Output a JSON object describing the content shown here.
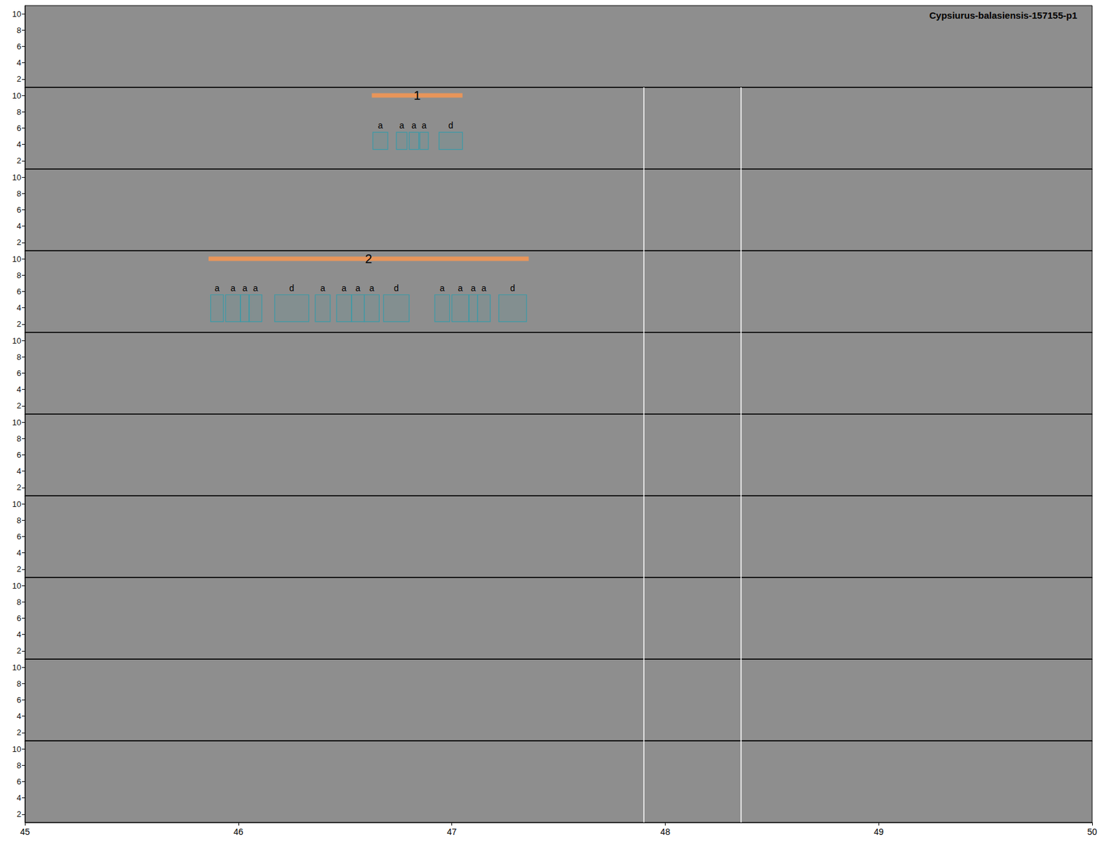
{
  "chart_data": {
    "type": "spectrogram",
    "title": "Cypsiurus-balasiensis-157155-p1",
    "xlim": [
      45,
      50
    ],
    "xticks": [
      45,
      46,
      47,
      48,
      49,
      50
    ],
    "ylim": [
      1,
      11
    ],
    "yticks": [
      2,
      4,
      6,
      8,
      10
    ],
    "panels": [
      {
        "vlines": []
      },
      {
        "vlines": [
          47.9,
          48.355
        ],
        "segments": [
          {
            "label": "1",
            "x": [
              46.625,
              47.05
            ],
            "y": 10
          }
        ],
        "boxes": [
          {
            "label": "a",
            "x": [
              46.63,
              46.7
            ],
            "y": [
              3.4,
              5.5
            ]
          },
          {
            "label": "a",
            "x": [
              46.74,
              46.79
            ],
            "y": [
              3.4,
              5.5
            ]
          },
          {
            "label": "a",
            "x": [
              46.8,
              46.845
            ],
            "y": [
              3.4,
              5.5
            ]
          },
          {
            "label": "a",
            "x": [
              46.85,
              46.89
            ],
            "y": [
              3.4,
              5.5
            ]
          },
          {
            "label": "d",
            "x": [
              46.94,
              47.05
            ],
            "y": [
              3.4,
              5.5
            ]
          }
        ]
      },
      {
        "vlines": [
          47.9,
          48.355
        ]
      },
      {
        "vlines": [
          47.9,
          48.355
        ],
        "segments": [
          {
            "label": "2",
            "x": [
              45.86,
              47.36
            ],
            "y": 10
          }
        ],
        "boxes": [
          {
            "label": "a",
            "x": [
              45.87,
              45.93
            ],
            "y": [
              2.3,
              5.6
            ]
          },
          {
            "label": "a",
            "x": [
              45.94,
              46.01
            ],
            "y": [
              2.3,
              5.6
            ]
          },
          {
            "label": "a",
            "x": [
              46.01,
              46.05
            ],
            "y": [
              2.3,
              5.6
            ]
          },
          {
            "label": "a",
            "x": [
              46.05,
              46.11
            ],
            "y": [
              2.3,
              5.6
            ]
          },
          {
            "label": "d",
            "x": [
              46.17,
              46.33
            ],
            "y": [
              2.3,
              5.6
            ]
          },
          {
            "label": "a",
            "x": [
              46.36,
              46.43
            ],
            "y": [
              2.3,
              5.6
            ]
          },
          {
            "label": "a",
            "x": [
              46.46,
              46.53
            ],
            "y": [
              2.3,
              5.6
            ]
          },
          {
            "label": "a",
            "x": [
              46.53,
              46.59
            ],
            "y": [
              2.3,
              5.6
            ]
          },
          {
            "label": "a",
            "x": [
              46.59,
              46.66
            ],
            "y": [
              2.3,
              5.6
            ]
          },
          {
            "label": "d",
            "x": [
              46.68,
              46.8
            ],
            "y": [
              2.3,
              5.6
            ]
          },
          {
            "label": "a",
            "x": [
              46.92,
              46.99
            ],
            "y": [
              2.3,
              5.6
            ]
          },
          {
            "label": "a",
            "x": [
              47.0,
              47.08
            ],
            "y": [
              2.3,
              5.6
            ]
          },
          {
            "label": "a",
            "x": [
              47.08,
              47.12
            ],
            "y": [
              2.3,
              5.6
            ]
          },
          {
            "label": "a",
            "x": [
              47.12,
              47.18
            ],
            "y": [
              2.3,
              5.6
            ]
          },
          {
            "label": "d",
            "x": [
              47.22,
              47.35
            ],
            "y": [
              2.3,
              5.6
            ]
          }
        ]
      },
      {
        "vlines": [
          47.9,
          48.355
        ]
      },
      {
        "vlines": [
          47.9,
          48.355
        ]
      },
      {
        "vlines": [
          47.9,
          48.355
        ]
      },
      {
        "vlines": [
          47.9,
          48.355
        ]
      },
      {
        "vlines": [
          47.9,
          48.355
        ]
      },
      {
        "vlines": [
          47.9,
          48.355
        ]
      }
    ]
  }
}
